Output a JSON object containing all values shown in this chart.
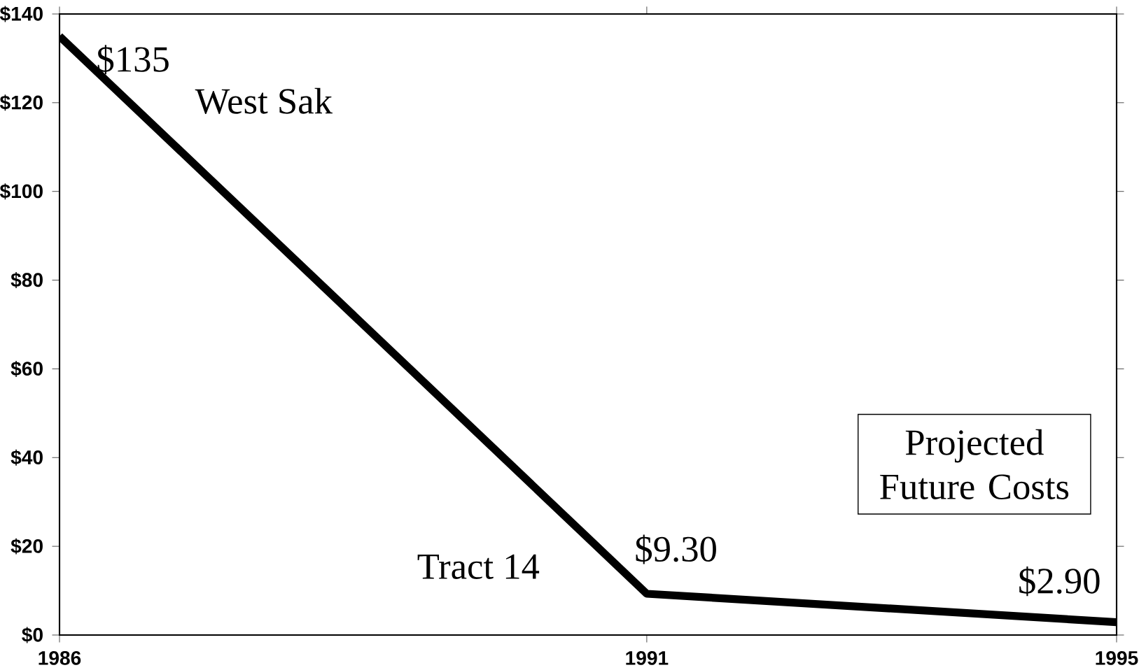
{
  "chart_data": {
    "type": "line",
    "x": [
      1986,
      1991,
      1995
    ],
    "series": [
      {
        "color": "#000000",
        "values": [
          135,
          9.3,
          2.9
        ],
        "value_labels": [
          "$135",
          "$9.30",
          "$2.90"
        ]
      }
    ],
    "xlim": [
      1986,
      1995
    ],
    "xticks": [
      1986,
      1991,
      1995
    ],
    "ylim": [
      0,
      140
    ],
    "yticks": [
      {
        "value": 0,
        "label": "$0"
      },
      {
        "value": 20,
        "label": "$20"
      },
      {
        "value": 40,
        "label": "$40"
      },
      {
        "value": 60,
        "label": "$60"
      },
      {
        "value": 80,
        "label": "$80"
      },
      {
        "value": 100,
        "label": "$100"
      },
      {
        "value": 120,
        "label": "$120"
      },
      {
        "value": 140,
        "label": "$140"
      }
    ],
    "marker": "none",
    "line_style": "solid",
    "grid": false,
    "annotations": [
      "West Sak",
      "Tract 14",
      "Projected Future Costs"
    ]
  }
}
